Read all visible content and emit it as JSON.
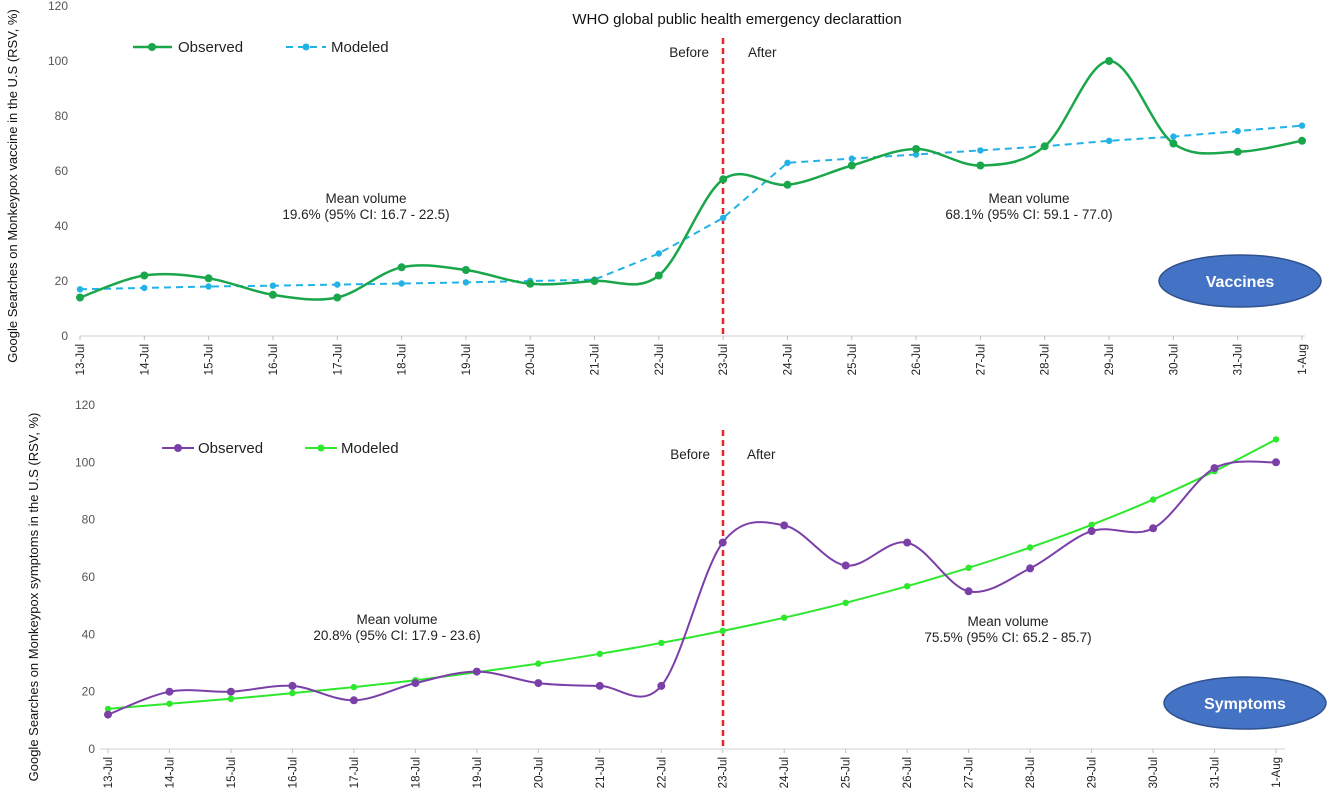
{
  "colors": {
    "vaccine_observed": "#1aa64b",
    "vaccine_modeled": "#22b2e6",
    "symptom_observed": "#7b3fa8",
    "symptom_modeled": "#2ee82e",
    "divider": "#e8262a",
    "badge": "#4472c4"
  },
  "chart_data": [
    {
      "type": "line",
      "title": "WHO global public health emergency declarattion",
      "ylabel": "Google Searches on Monkeypox vaccine in the U.S (RSV, %)",
      "xlabel": "",
      "categories": [
        "13-Jul",
        "14-Jul",
        "15-Jul",
        "16-Jul",
        "17-Jul",
        "18-Jul",
        "19-Jul",
        "20-Jul",
        "21-Jul",
        "22-Jul",
        "23-Jul",
        "24-Jul",
        "25-Jul",
        "26-Jul",
        "27-Jul",
        "28-Jul",
        "29-Jul",
        "30-Jul",
        "31-Jul",
        "1-Aug"
      ],
      "ylim": [
        0,
        120
      ],
      "yticks": [
        "0",
        "20",
        "40",
        "60",
        "80",
        "100",
        "120"
      ],
      "series": [
        {
          "name": "Observed",
          "values": [
            14,
            22,
            21,
            15,
            14,
            25,
            24,
            19,
            20,
            22,
            57,
            55,
            62,
            68,
            62,
            69,
            100,
            70,
            67,
            71
          ]
        },
        {
          "name": "Modeled",
          "values": [
            17,
            17.5,
            18,
            18.3,
            18.7,
            19.1,
            19.5,
            20,
            20.5,
            30,
            43,
            63,
            64.5,
            66,
            67.5,
            69,
            71,
            72.5,
            74.5,
            76.5
          ]
        }
      ],
      "divider_at": "23-Jul",
      "before_label": "Before",
      "after_label": "After",
      "annotations": [
        {
          "line1": "Mean volume",
          "line2": "19.6% (95% CI: 16.7 - 22.5)"
        },
        {
          "line1": "Mean volume",
          "line2": "68.1% (95% CI: 59.1 - 77.0)"
        }
      ],
      "badge": "Vaccines",
      "legend_placement": "top-left",
      "grid": false
    },
    {
      "type": "line",
      "title": "",
      "ylabel": "Google Searches on Monkeypox symptoms in the U.S (RSV, %)",
      "xlabel": "",
      "categories": [
        "13-Jul",
        "14-Jul",
        "15-Jul",
        "16-Jul",
        "17-Jul",
        "18-Jul",
        "19-Jul",
        "20-Jul",
        "21-Jul",
        "22-Jul",
        "23-Jul",
        "24-Jul",
        "25-Jul",
        "26-Jul",
        "27-Jul",
        "28-Jul",
        "29-Jul",
        "30-Jul",
        "31-Jul",
        "1-Aug"
      ],
      "ylim": [
        0,
        120
      ],
      "yticks": [
        "0",
        "20",
        "40",
        "60",
        "80",
        "100",
        "120"
      ],
      "series": [
        {
          "name": "Observed",
          "values": [
            12,
            20,
            20,
            22,
            17,
            23,
            27,
            23,
            22,
            22,
            72,
            78,
            64,
            72,
            55,
            63,
            76,
            77,
            98,
            100
          ]
        },
        {
          "name": "Modeled",
          "values": [
            14,
            15.8,
            17.5,
            19.5,
            21.6,
            24,
            26.8,
            29.8,
            33.2,
            37,
            41.2,
            45.8,
            51,
            56.8,
            63.2,
            70.3,
            78.2,
            87,
            96.9,
            108
          ]
        }
      ],
      "divider_at": "23-Jul",
      "before_label": "Before",
      "after_label": "After",
      "annotations": [
        {
          "line1": "Mean volume",
          "line2": "20.8% (95% CI: 17.9 - 23.6)"
        },
        {
          "line1": "Mean volume",
          "line2": "75.5% (95% CI: 65.2 - 85.7)"
        }
      ],
      "badge": "Symptoms",
      "legend_placement": "top-left",
      "grid": false
    }
  ]
}
